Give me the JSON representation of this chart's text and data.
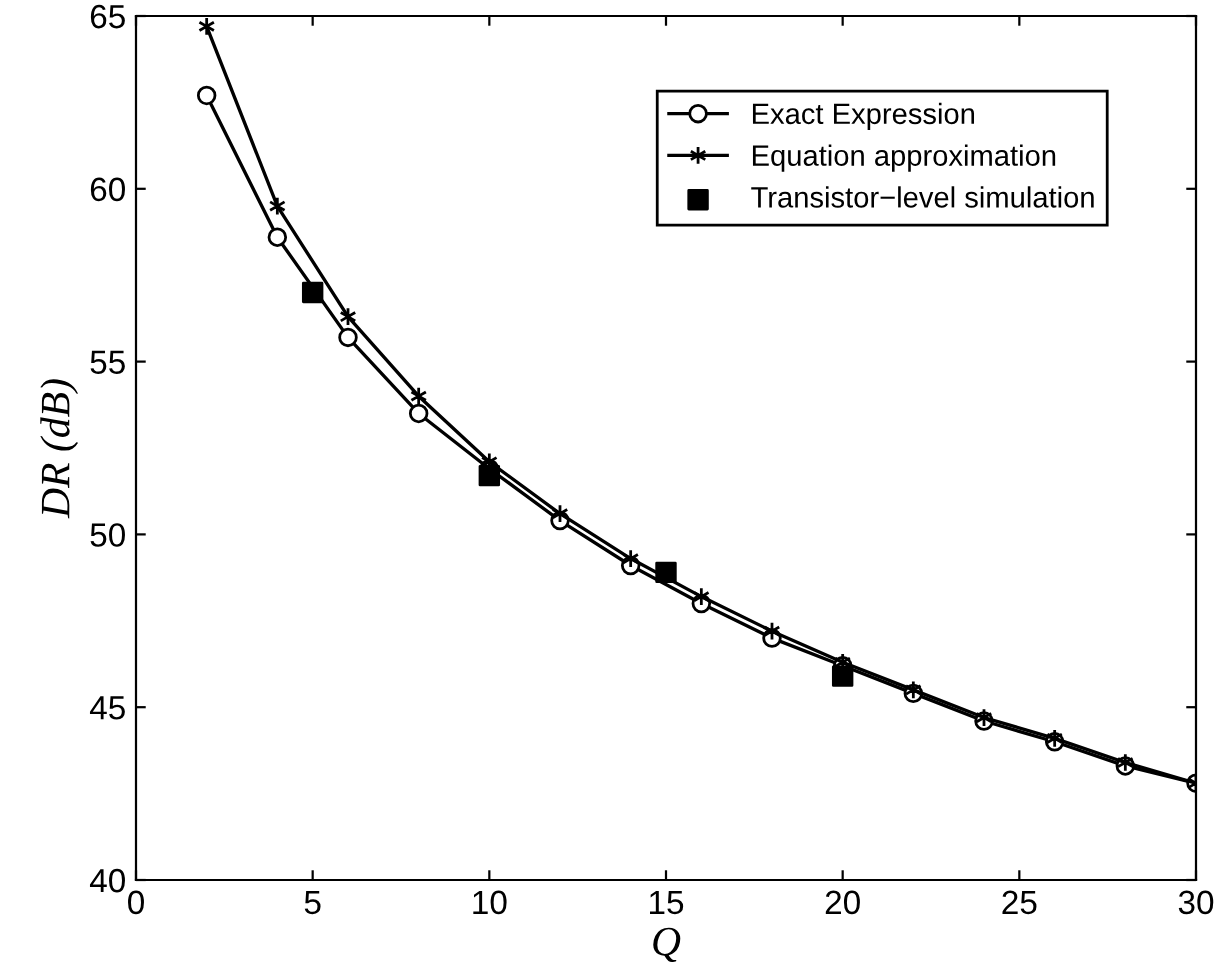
{
  "chart_data": {
    "type": "line",
    "xlabel": "Q",
    "ylabel": "DR (dB)",
    "xlim": [
      0,
      30
    ],
    "ylim": [
      40,
      65
    ],
    "xticks": [
      0,
      5,
      10,
      15,
      20,
      25,
      30
    ],
    "yticks": [
      40,
      45,
      50,
      55,
      60,
      65
    ],
    "grid": false,
    "legend": "top right",
    "series": [
      {
        "name": "Exact Expression",
        "color": "#000000",
        "marker": "circle",
        "x": [
          2,
          4,
          6,
          8,
          10,
          12,
          14,
          16,
          18,
          20,
          22,
          24,
          26,
          28,
          30
        ],
        "values": [
          62.7,
          58.6,
          55.7,
          53.5,
          51.9,
          50.4,
          49.1,
          48.0,
          47.0,
          46.2,
          45.4,
          44.6,
          44.0,
          43.3,
          42.8
        ]
      },
      {
        "name": "Equation approximation",
        "color": "#000000",
        "marker": "cross",
        "x": [
          2,
          4,
          6,
          8,
          10,
          12,
          14,
          16,
          18,
          20,
          22,
          24,
          26,
          28,
          30
        ],
        "values": [
          64.7,
          59.5,
          56.3,
          54.0,
          52.1,
          50.6,
          49.3,
          48.2,
          47.2,
          46.3,
          45.5,
          44.7,
          44.1,
          43.4,
          42.8
        ]
      },
      {
        "name": "Transistor−level simulation",
        "type": "scatter",
        "color": "#000000",
        "marker": "square",
        "x": [
          5,
          10,
          15,
          20
        ],
        "values": [
          57.0,
          51.7,
          48.9,
          45.9
        ]
      }
    ]
  }
}
